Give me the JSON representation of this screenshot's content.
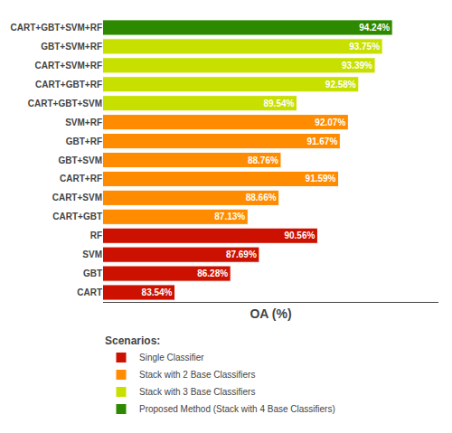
{
  "chart_data": {
    "type": "bar",
    "orientation": "horizontal",
    "categories": [
      "CART",
      "GBT",
      "SVM",
      "RF",
      "CART+GBT",
      "CART+SVM",
      "CART+RF",
      "GBT+SVM",
      "GBT+RF",
      "SVM+RF",
      "CART+GBT+SVM",
      "CART+GBT+RF",
      "CART+SVM+RF",
      "GBT+SVM+RF",
      "CART+GBT+SVM+RF"
    ],
    "xlabel": "OA (%)",
    "xlim": [
      80,
      96.5
    ],
    "xticks": [],
    "tick_labels": "y",
    "grid": false,
    "data_labels": true,
    "legend": "lower left",
    "annotations": [
      {
        "text": "Scenarios:"
      }
    ],
    "series": [
      {
        "name": "Single Classifier",
        "color": "#cc1100",
        "values": [
          83.54,
          86.28,
          87.69,
          90.56,
          null,
          null,
          null,
          null,
          null,
          null,
          null,
          null,
          null,
          null,
          null
        ],
        "value_labels": [
          "83.54%",
          "86.28%",
          "87.69%",
          "90.56%",
          null,
          null,
          null,
          null,
          null,
          null,
          null,
          null,
          null,
          null,
          null
        ]
      },
      {
        "name": "Stack with 2 Base Classifiers",
        "color": "#ff8c00",
        "values": [
          null,
          null,
          null,
          null,
          87.13,
          88.66,
          91.59,
          88.76,
          91.67,
          92.07,
          null,
          null,
          null,
          null,
          null
        ],
        "value_labels": [
          null,
          null,
          null,
          null,
          "87.13%",
          "88.66%",
          "91.59%",
          "88.76%",
          "91.67%",
          "92.07%",
          null,
          null,
          null,
          null,
          null
        ]
      },
      {
        "name": "Stack with 3 Base Classifiers",
        "color": "#c8e000",
        "values": [
          null,
          null,
          null,
          null,
          null,
          null,
          null,
          null,
          null,
          null,
          89.54,
          92.58,
          93.39,
          93.75,
          null
        ],
        "value_labels": [
          null,
          null,
          null,
          null,
          null,
          null,
          null,
          null,
          null,
          null,
          "89.54%",
          "92.58%",
          "93.39%",
          "93.75%",
          null
        ]
      },
      {
        "name": "Proposed Method (Stack with 4 Base Classifiers)",
        "color": "#2d8a00",
        "values": [
          null,
          null,
          null,
          null,
          null,
          null,
          null,
          null,
          null,
          null,
          null,
          null,
          null,
          null,
          94.24
        ],
        "value_labels": [
          null,
          null,
          null,
          null,
          null,
          null,
          null,
          null,
          null,
          null,
          null,
          null,
          null,
          null,
          "94.24%"
        ]
      }
    ]
  }
}
